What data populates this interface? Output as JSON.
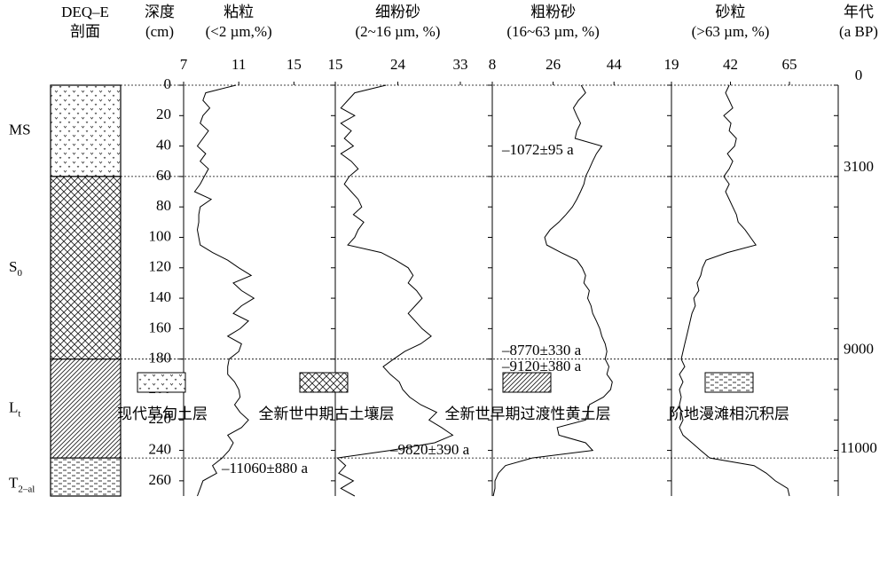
{
  "header": {
    "section": [
      "DEQ–E",
      "剖面"
    ],
    "depth": [
      "深度",
      "(cm)"
    ],
    "age": [
      "年代",
      "(a BP)"
    ]
  },
  "chart_data": {
    "type": "depth-profile",
    "color": "#000000",
    "depth": [
      0,
      5,
      10,
      15,
      20,
      25,
      30,
      35,
      40,
      45,
      50,
      55,
      60,
      65,
      70,
      75,
      80,
      85,
      90,
      95,
      100,
      105,
      110,
      115,
      120,
      125,
      130,
      135,
      140,
      145,
      150,
      155,
      160,
      165,
      170,
      175,
      180,
      185,
      190,
      195,
      200,
      205,
      210,
      215,
      220,
      225,
      230,
      235,
      240,
      245,
      250,
      255,
      260,
      265,
      270
    ],
    "ylim": [
      0,
      270
    ],
    "yticks": [
      0,
      20,
      40,
      60,
      80,
      100,
      120,
      140,
      160,
      180,
      200,
      220,
      240,
      260
    ],
    "series": [
      {
        "name": "粘粒",
        "unit": "(<2 µm,%)",
        "xlim": [
          7,
          18
        ],
        "xticks": [
          7,
          11,
          15
        ],
        "values": [
          10.8,
          8.6,
          8.4,
          8.9,
          8.4,
          8.2,
          8.8,
          8.4,
          8.0,
          8.6,
          8.2,
          8.8,
          8.5,
          8.2,
          7.8,
          9.0,
          8.2,
          8.1,
          8.1,
          8.0,
          8.1,
          8.2,
          9.1,
          10.2,
          11.0,
          11.9,
          10.6,
          11.2,
          12.1,
          11.2,
          10.6,
          11.7,
          11.1,
          10.2,
          11.2,
          11.0,
          10.3,
          10.2,
          10.2,
          10.7,
          11.0,
          11.1,
          10.7,
          11.1,
          11.7,
          11.2,
          10.2,
          10.6,
          10.3,
          9.8,
          9.1,
          9.4,
          8.4,
          8.2,
          8.0
        ]
      },
      {
        "name": "细粉砂",
        "unit": "(2~16 µm, %)",
        "xlim": [
          15,
          37.6
        ],
        "xticks": [
          15,
          24,
          33
        ],
        "values": [
          22.3,
          17.8,
          16.8,
          15.8,
          17.8,
          15.8,
          17.3,
          16.3,
          17.6,
          15.8,
          17.3,
          18.3,
          17.0,
          16.3,
          17.3,
          18.3,
          18.8,
          17.6,
          19.1,
          18.3,
          17.8,
          16.8,
          21.6,
          23.7,
          25.5,
          26.2,
          25.5,
          26.7,
          27.5,
          26.5,
          25.5,
          26.5,
          27.5,
          28.8,
          27.3,
          25.0,
          23.4,
          21.9,
          22.9,
          24.2,
          24.7,
          25.7,
          27.3,
          29.6,
          28.5,
          30.3,
          31.9,
          29.3,
          22.9,
          15.3,
          16.5,
          15.5,
          17.6,
          15.8,
          17.8
        ]
      },
      {
        "name": "粗粉砂",
        "unit": "(16~63 µm, %)",
        "xlim": [
          8,
          61
        ],
        "xticks": [
          8,
          26,
          44
        ],
        "values": [
          34.3,
          35.6,
          33.5,
          32.0,
          33.0,
          34.1,
          33.0,
          32.5,
          40.4,
          38.8,
          37.7,
          36.7,
          35.6,
          35.1,
          34.1,
          33.0,
          31.7,
          29.8,
          27.7,
          25.1,
          23.5,
          24.1,
          28.3,
          33.0,
          34.6,
          35.6,
          35.1,
          36.7,
          36.2,
          37.2,
          37.7,
          38.8,
          39.8,
          40.4,
          41.4,
          41.9,
          41.4,
          42.5,
          41.9,
          43.5,
          43.0,
          40.9,
          36.7,
          36.2,
          35.6,
          27.2,
          27.7,
          35.6,
          37.7,
          19.8,
          11.9,
          9.8,
          8.8,
          8.8,
          8.3
        ]
      },
      {
        "name": "砂粒",
        "unit": "(>63 µm, %)",
        "xlim": [
          19,
          84
        ],
        "xticks": [
          19,
          42,
          65
        ],
        "values": [
          41.5,
          40.1,
          41.5,
          42.9,
          39.4,
          42.2,
          41.5,
          44.3,
          43.6,
          40.8,
          42.9,
          41.5,
          39.4,
          41.5,
          40.1,
          41.5,
          42.9,
          44.3,
          45.0,
          47.7,
          49.8,
          51.9,
          40.8,
          32.5,
          31.1,
          30.4,
          29.0,
          29.7,
          27.7,
          28.3,
          27.0,
          26.3,
          25.6,
          24.9,
          24.2,
          23.5,
          22.8,
          24.2,
          22.1,
          23.5,
          22.1,
          22.8,
          22.1,
          22.8,
          23.5,
          22.1,
          23.5,
          27.0,
          30.4,
          33.9,
          51.2,
          56.0,
          59.5,
          64.3,
          65.0
        ]
      }
    ]
  },
  "column": {
    "layers": [
      {
        "label": "MS",
        "top": 0,
        "bottom": 60,
        "pattern": "dots"
      },
      {
        "label": "S",
        "sub": "0",
        "top": 60,
        "bottom": 180,
        "pattern": "cross"
      },
      {
        "label": "L",
        "sub": "t",
        "top": 180,
        "bottom": 245,
        "pattern": "diag"
      },
      {
        "label": "T",
        "sub": "2–al",
        "top": 245,
        "bottom": 270,
        "pattern": "dash"
      }
    ]
  },
  "ages": [
    {
      "age": 0,
      "depth": 0
    },
    {
      "age": 3100,
      "depth": 60
    },
    {
      "age": 9000,
      "depth": 180
    },
    {
      "age": 11000,
      "depth": 245
    }
  ],
  "annotations": [
    "–1072±95 a",
    "–8770±330 a",
    "–9120±380 a",
    "–9820±390 a",
    "–11060±880 a"
  ],
  "legend": [
    {
      "label": "现代草甸土层",
      "pattern": "dots"
    },
    {
      "label": "全新世中期古土壤层",
      "pattern": "cross"
    },
    {
      "label": "全新世早期过渡性黄土层",
      "pattern": "diag"
    },
    {
      "label": "阶地漫滩相沉积层",
      "pattern": "dash"
    }
  ]
}
